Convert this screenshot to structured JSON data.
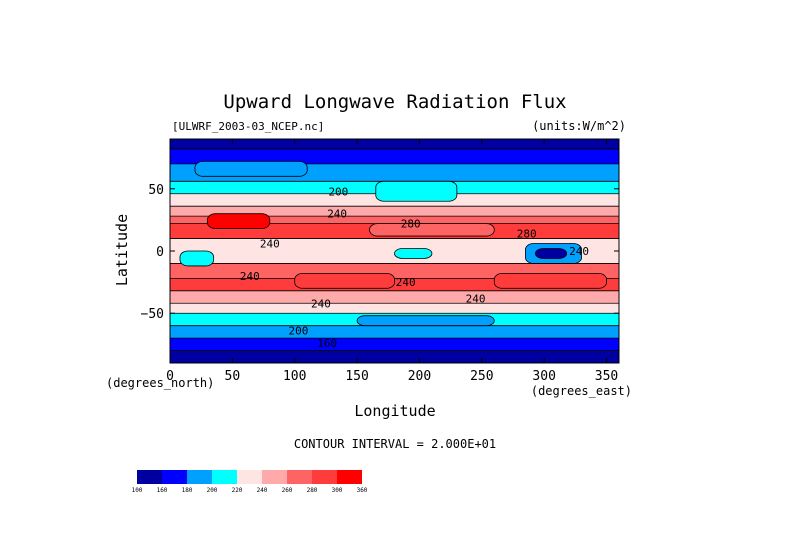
{
  "chart_data": {
    "type": "heatmap",
    "title": "Upward Longwave Radiation Flux",
    "source_label": "[ULWRF_2003-03_NCEP.nc]",
    "units_label": "(units:W/m^2)",
    "xlabel": "Longitude",
    "ylabel": "Latitude",
    "x_unit_label": "(degrees_east)",
    "y_unit_label": "(degrees_north)",
    "xlim": [
      0,
      360
    ],
    "ylim": [
      -90,
      90
    ],
    "x_ticks": [
      "0",
      "50",
      "100",
      "150",
      "200",
      "250",
      "300",
      "350"
    ],
    "y_ticks": [
      "50",
      "0",
      "−50"
    ],
    "contour_interval_text": "CONTOUR INTERVAL = 2.000E+01",
    "contour_labels": [
      {
        "text": "200",
        "lon": 135,
        "lat": 48
      },
      {
        "text": "240",
        "lon": 134,
        "lat": 30
      },
      {
        "text": "280",
        "lon": 193,
        "lat": 22
      },
      {
        "text": "280",
        "lon": 286,
        "lat": 14
      },
      {
        "text": "240",
        "lon": 80,
        "lat": 6
      },
      {
        "text": "240",
        "lon": 328,
        "lat": 0
      },
      {
        "text": "240",
        "lon": 64,
        "lat": -20
      },
      {
        "text": "240",
        "lon": 189,
        "lat": -25
      },
      {
        "text": "240",
        "lon": 245,
        "lat": -38
      },
      {
        "text": "240",
        "lon": 121,
        "lat": -42
      },
      {
        "text": "200",
        "lon": 103,
        "lat": -64
      },
      {
        "text": "160",
        "lon": 126,
        "lat": -74
      }
    ],
    "lat_bands": [
      {
        "from": 90,
        "to": 82,
        "value": 150
      },
      {
        "from": 82,
        "to": 70,
        "value": 170
      },
      {
        "from": 70,
        "to": 56,
        "value": 190
      },
      {
        "from": 56,
        "to": 46,
        "value": 210
      },
      {
        "from": 46,
        "to": 36,
        "value": 230
      },
      {
        "from": 36,
        "to": 28,
        "value": 250
      },
      {
        "from": 28,
        "to": 22,
        "value": 270
      },
      {
        "from": 22,
        "to": 10,
        "value": 290
      },
      {
        "from": 10,
        "to": -10,
        "value": 230
      },
      {
        "from": -10,
        "to": -22,
        "value": 270
      },
      {
        "from": -22,
        "to": -32,
        "value": 290
      },
      {
        "from": -32,
        "to": -42,
        "value": 250
      },
      {
        "from": -42,
        "to": -50,
        "value": 230
      },
      {
        "from": -50,
        "to": -60,
        "value": 210
      },
      {
        "from": -60,
        "to": -70,
        "value": 190
      },
      {
        "from": -70,
        "to": -80,
        "value": 170
      },
      {
        "from": -80,
        "to": -90,
        "value": 150
      }
    ],
    "regions": [
      {
        "lon": [
          30,
          80
        ],
        "lat": [
          18,
          30
        ],
        "value": 310
      },
      {
        "lon": [
          160,
          260
        ],
        "lat": [
          12,
          22
        ],
        "value": 270
      },
      {
        "lon": [
          100,
          180
        ],
        "lat": [
          -30,
          -18
        ],
        "value": 290
      },
      {
        "lon": [
          260,
          350
        ],
        "lat": [
          -30,
          -18
        ],
        "value": 290
      },
      {
        "lon": [
          8,
          35
        ],
        "lat": [
          -12,
          0
        ],
        "value": 210
      },
      {
        "lon": [
          285,
          330
        ],
        "lat": [
          -10,
          6
        ],
        "value": 190
      },
      {
        "lon": [
          293,
          318
        ],
        "lat": [
          -6,
          2
        ],
        "value": 150
      },
      {
        "lon": [
          180,
          210
        ],
        "lat": [
          -6,
          2
        ],
        "value": 210
      },
      {
        "lon": [
          165,
          230
        ],
        "lat": [
          40,
          56
        ],
        "value": 210
      },
      {
        "lon": [
          20,
          110
        ],
        "lat": [
          60,
          72
        ],
        "value": 190
      },
      {
        "lon": [
          150,
          260
        ],
        "lat": [
          -60,
          -52
        ],
        "value": 190
      }
    ],
    "colorbar": {
      "levels": [
        "100",
        "160",
        "180",
        "200",
        "220",
        "240",
        "260",
        "280",
        "300",
        "360"
      ],
      "colors": [
        "#0000a0",
        "#0000ff",
        "#00a0ff",
        "#00ffff",
        "#ffe4e4",
        "#ffaaaa",
        "#ff6464",
        "#ff3c3c",
        "#ff0000"
      ]
    }
  }
}
